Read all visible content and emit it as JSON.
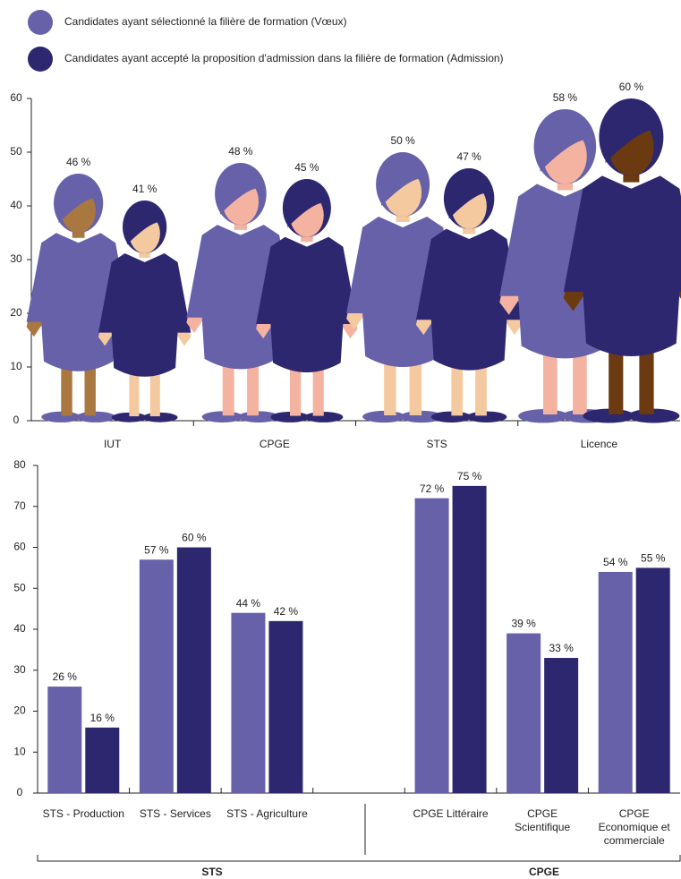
{
  "chart_data": [
    {
      "type": "pictogram",
      "categories": [
        "IUT",
        "CPGE",
        "STS",
        "Licence"
      ],
      "series": [
        {
          "name": "Candidates ayant sélectionné la filière de formation (Vœux)",
          "color": "#6661a9",
          "values": [
            46,
            48,
            50,
            58
          ],
          "value_labels": [
            "46 %",
            "48 %",
            "50 %",
            "58 %"
          ]
        },
        {
          "name": "Candidates ayant accepté la proposition d'admission dans la filière de formation (Admission)",
          "color": "#2d276f",
          "values": [
            41,
            45,
            47,
            60
          ],
          "value_labels": [
            "41 %",
            "45 %",
            "47 %",
            "60 %"
          ]
        }
      ],
      "ylim": [
        0,
        60
      ],
      "yticks": [
        0,
        10,
        20,
        30,
        40,
        50,
        60
      ]
    },
    {
      "type": "bar",
      "categories": [
        "STS - Production",
        "STS - Services",
        "STS - Agriculture",
        null,
        "CPGE Littéraire",
        "CPGE Scientifique",
        "CPGE Economique et commerciale"
      ],
      "groups": [
        "STS",
        "CPGE"
      ],
      "series": [
        {
          "color": "#6661a9",
          "values": [
            26,
            57,
            44,
            null,
            72,
            39,
            54
          ],
          "value_labels": [
            "26 %",
            "57 %",
            "44 %",
            null,
            "72 %",
            "39 %",
            "54 %"
          ]
        },
        {
          "color": "#2d276f",
          "values": [
            16,
            60,
            42,
            null,
            75,
            33,
            55
          ],
          "value_labels": [
            "16 %",
            "60 %",
            "42 %",
            null,
            "75 %",
            "33 %",
            "55 %"
          ]
        }
      ],
      "ylim": [
        0,
        80
      ],
      "yticks": [
        0,
        10,
        20,
        30,
        40,
        50,
        60,
        70,
        80
      ]
    }
  ]
}
